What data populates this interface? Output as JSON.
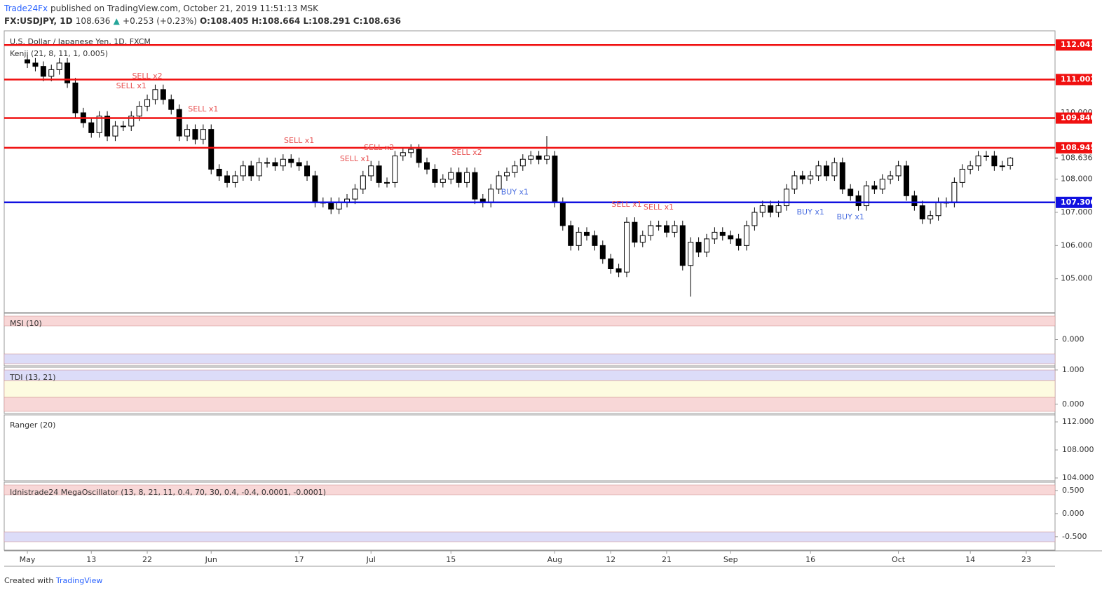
{
  "header": {
    "publisher": "Trade24Fx",
    "published": "published on TradingView.com, October 21, 2019 11:51:13 MSK",
    "symbol": "FX:USDJPY, 1D",
    "price": "108.636",
    "arrow": "▲",
    "change": "+0.253 (+0.23%)",
    "ohlc": "O:108.405 H:108.664 L:108.291 C:108.636"
  },
  "chart_data": {
    "type": "candlestick",
    "title": "U.S. Dollar / Japanese Yen, 1D, FXCM",
    "indicator": "Kenji (21, 8, 11, 1, 0.005)",
    "up_color": "#ffffff",
    "down_color": "#000000",
    "open": [
      111.6,
      111.5,
      111.4,
      111.1,
      111.3,
      111.5,
      110.9,
      110.0,
      109.7,
      109.4,
      109.9,
      109.3,
      109.6,
      109.6,
      109.9,
      110.2,
      110.4,
      110.7,
      110.4,
      110.1,
      109.3,
      109.5,
      109.2,
      109.5,
      108.3,
      108.1,
      107.9,
      108.1,
      108.4,
      108.1,
      108.5,
      108.5,
      108.4,
      108.6,
      108.5,
      108.4,
      108.1,
      107.3,
      107.3,
      107.1,
      107.3,
      107.4,
      107.7,
      108.1,
      108.4,
      107.9,
      107.9,
      108.7,
      108.8,
      108.9,
      108.5,
      108.3,
      107.9,
      108.0,
      108.2,
      107.9,
      108.2,
      107.4,
      107.3,
      107.7,
      108.1,
      108.2,
      108.4,
      108.6,
      108.7,
      108.6,
      108.7,
      107.3,
      106.6,
      106.0,
      106.4,
      106.3,
      106.0,
      105.6,
      105.3,
      105.2,
      106.7,
      106.1,
      106.3,
      106.6,
      106.6,
      106.4,
      106.6,
      105.4,
      106.1,
      105.8,
      106.2,
      106.4,
      106.3,
      106.2,
      106.0,
      106.6,
      107.0,
      107.2,
      107.0,
      107.2,
      107.7,
      108.1,
      108.0,
      108.1,
      108.4,
      108.1,
      108.5,
      107.7,
      107.5,
      107.2,
      107.8,
      107.7,
      108.0,
      108.1,
      108.4,
      107.5,
      107.2,
      106.8,
      106.9,
      107.3,
      107.3,
      107.9,
      108.3,
      108.4,
      108.7,
      108.7,
      108.4,
      108.405
    ],
    "high": [
      111.75,
      111.65,
      111.55,
      111.45,
      111.65,
      111.65,
      111.05,
      110.15,
      109.85,
      110.05,
      110.05,
      109.75,
      109.75,
      110.05,
      110.35,
      110.55,
      110.85,
      110.85,
      110.55,
      110.25,
      109.65,
      109.65,
      109.65,
      109.65,
      108.45,
      108.25,
      108.25,
      108.55,
      108.55,
      108.65,
      108.65,
      108.65,
      108.75,
      108.75,
      108.65,
      108.55,
      108.25,
      107.45,
      107.45,
      107.45,
      107.55,
      107.85,
      108.25,
      108.55,
      108.55,
      108.05,
      108.85,
      108.95,
      109.05,
      109.05,
      108.65,
      108.45,
      108.15,
      108.35,
      108.35,
      108.35,
      108.35,
      107.55,
      107.85,
      108.25,
      108.35,
      108.55,
      108.75,
      108.85,
      108.85,
      109.3,
      108.85,
      107.45,
      106.75,
      106.55,
      106.55,
      106.45,
      106.15,
      105.75,
      105.45,
      106.85,
      106.85,
      106.45,
      106.75,
      106.75,
      106.75,
      106.75,
      106.75,
      106.25,
      106.25,
      106.35,
      106.55,
      106.55,
      106.45,
      106.35,
      106.75,
      107.15,
      107.35,
      107.35,
      107.35,
      107.85,
      108.25,
      108.25,
      108.25,
      108.55,
      108.55,
      108.65,
      108.65,
      107.85,
      107.65,
      107.95,
      107.95,
      108.15,
      108.25,
      108.55,
      108.55,
      107.65,
      107.35,
      107.05,
      107.45,
      107.45,
      108.05,
      108.45,
      108.55,
      108.85,
      108.85,
      108.85,
      108.55,
      108.664
    ],
    "low": [
      111.35,
      111.25,
      110.95,
      110.95,
      111.15,
      110.75,
      109.85,
      109.55,
      109.25,
      109.25,
      109.15,
      109.15,
      109.45,
      109.45,
      109.75,
      110.05,
      110.25,
      110.25,
      109.95,
      109.15,
      109.15,
      109.05,
      109.05,
      108.15,
      107.95,
      107.75,
      107.75,
      107.95,
      107.95,
      107.95,
      108.35,
      108.25,
      108.25,
      108.35,
      108.25,
      107.95,
      107.15,
      107.15,
      106.95,
      106.95,
      107.15,
      107.25,
      107.55,
      107.95,
      107.75,
      107.75,
      107.75,
      108.55,
      108.65,
      108.35,
      108.15,
      107.75,
      107.75,
      107.85,
      107.75,
      107.75,
      107.25,
      107.15,
      107.15,
      107.55,
      107.95,
      108.05,
      108.25,
      108.45,
      108.45,
      108.45,
      107.15,
      106.45,
      105.85,
      105.85,
      106.15,
      105.85,
      105.45,
      105.15,
      105.05,
      105.05,
      105.95,
      105.95,
      106.15,
      106.45,
      106.25,
      106.25,
      105.25,
      104.46,
      105.65,
      105.65,
      106.05,
      106.15,
      106.05,
      105.85,
      105.85,
      106.45,
      106.85,
      106.85,
      106.85,
      107.05,
      107.55,
      107.85,
      107.85,
      107.95,
      107.95,
      107.95,
      107.55,
      107.35,
      107.05,
      107.05,
      107.55,
      107.55,
      107.85,
      107.95,
      107.35,
      107.05,
      106.65,
      106.65,
      106.75,
      107.15,
      107.15,
      107.75,
      108.15,
      108.25,
      108.55,
      108.25,
      108.25,
      108.291
    ],
    "close": [
      111.5,
      111.4,
      111.1,
      111.3,
      111.5,
      110.9,
      110.0,
      109.7,
      109.4,
      109.9,
      109.3,
      109.6,
      109.6,
      109.9,
      110.2,
      110.4,
      110.7,
      110.4,
      110.1,
      109.3,
      109.5,
      109.2,
      109.5,
      108.3,
      108.1,
      107.9,
      108.1,
      108.4,
      108.1,
      108.5,
      108.5,
      108.4,
      108.6,
      108.5,
      108.4,
      108.1,
      107.3,
      107.3,
      107.1,
      107.3,
      107.4,
      107.7,
      108.1,
      108.4,
      107.9,
      107.9,
      108.7,
      108.8,
      108.9,
      108.5,
      108.3,
      107.9,
      108.0,
      108.2,
      107.9,
      108.2,
      107.4,
      107.3,
      107.7,
      108.1,
      108.2,
      108.4,
      108.6,
      108.7,
      108.6,
      108.7,
      107.3,
      106.6,
      106.0,
      106.4,
      106.3,
      106.0,
      105.6,
      105.3,
      105.2,
      106.7,
      106.1,
      106.3,
      106.6,
      106.6,
      106.4,
      106.6,
      105.4,
      106.1,
      105.8,
      106.2,
      106.4,
      106.3,
      106.2,
      106.0,
      106.6,
      107.0,
      107.2,
      107.0,
      107.2,
      107.7,
      108.1,
      108.0,
      108.1,
      108.4,
      108.1,
      108.5,
      107.7,
      107.5,
      107.2,
      107.8,
      107.7,
      108.0,
      108.1,
      108.4,
      107.5,
      107.2,
      106.8,
      106.9,
      107.3,
      107.3,
      107.9,
      108.3,
      108.4,
      108.7,
      108.7,
      108.4,
      108.4,
      108.636
    ],
    "xlim": [
      -2.9,
      128.6
    ],
    "xticks": [
      {
        "value": 0,
        "label": "May"
      },
      {
        "value": 8,
        "label": "13"
      },
      {
        "value": 15,
        "label": "22"
      },
      {
        "value": 23,
        "label": "Jun"
      },
      {
        "value": 34,
        "label": "17"
      },
      {
        "value": 43,
        "label": "Jul"
      },
      {
        "value": 53,
        "label": "15"
      },
      {
        "value": 66,
        "label": "Aug"
      },
      {
        "value": 73,
        "label": "12"
      },
      {
        "value": 80,
        "label": "21"
      },
      {
        "value": 88,
        "label": "Sep"
      },
      {
        "value": 98,
        "label": "16"
      },
      {
        "value": 109,
        "label": "Oct"
      },
      {
        "value": 118,
        "label": "14"
      },
      {
        "value": 125,
        "label": "23"
      }
    ],
    "ylim": [
      103.98,
      112.47
    ],
    "yticks": [
      {
        "value": 105,
        "label": "105.000"
      },
      {
        "value": 106,
        "label": "106.000"
      },
      {
        "value": 107,
        "label": "107.000"
      },
      {
        "value": 108,
        "label": "108.000"
      },
      {
        "value": 110,
        "label": "110.000"
      }
    ],
    "last_price": {
      "value": 108.636,
      "label": "108.636"
    },
    "hlines": [
      {
        "value": 112.043,
        "label": "112.043",
        "color": "#f01010"
      },
      {
        "value": 111.002,
        "label": "111.002",
        "color": "#f01010"
      },
      {
        "value": 109.84,
        "label": "109.840",
        "color": "#f01010"
      },
      {
        "value": 108.945,
        "label": "108.945",
        "color": "#f01010"
      },
      {
        "value": 107.3,
        "label": "107.300",
        "color": "#1010e0"
      }
    ],
    "annotations": [
      {
        "text": "SELL x1",
        "index": 13,
        "price": 110.8,
        "color": "#e85050"
      },
      {
        "text": "SELL x2",
        "index": 15,
        "price": 111.1,
        "color": "#e85050"
      },
      {
        "text": "SELL x1",
        "index": 22,
        "price": 110.1,
        "color": "#e85050"
      },
      {
        "text": "SELL x1",
        "index": 34,
        "price": 109.15,
        "color": "#e85050"
      },
      {
        "text": "SELL x1",
        "index": 41,
        "price": 108.6,
        "color": "#e85050"
      },
      {
        "text": "SELL x2",
        "index": 44,
        "price": 108.94,
        "color": "#e85050"
      },
      {
        "text": "SELL x2",
        "index": 55,
        "price": 108.8,
        "color": "#e85050"
      },
      {
        "text": "BUY x1",
        "index": 61,
        "price": 107.6,
        "color": "#4a6ee0"
      },
      {
        "text": "SELL x1",
        "index": 75,
        "price": 107.23,
        "color": "#e85050"
      },
      {
        "text": "SELL x1",
        "index": 79,
        "price": 107.15,
        "color": "#e85050"
      },
      {
        "text": "BUY x1",
        "index": 98,
        "price": 107.0,
        "color": "#4a6ee0"
      },
      {
        "text": "BUY x1",
        "index": 103,
        "price": 106.85,
        "color": "#4a6ee0"
      }
    ]
  },
  "panes": [
    {
      "title": "MSI (10)",
      "ylim": [
        -1,
        1
      ],
      "yticks": [
        {
          "value": 0,
          "label": "0.000"
        }
      ]
    },
    {
      "title": "TDI (13, 21)",
      "ylim": [
        -0.27,
        1.08
      ],
      "yticks": [
        {
          "value": 1,
          "label": "1.000"
        },
        {
          "value": 0,
          "label": "0.000"
        }
      ]
    },
    {
      "title": "Ranger (20)",
      "ylim": [
        103.6,
        113
      ],
      "yticks": [
        {
          "value": 112,
          "label": "112.000"
        },
        {
          "value": 108,
          "label": "108.000"
        },
        {
          "value": 104,
          "label": "104.000"
        }
      ]
    },
    {
      "title": "Idnistrade24 MegaOscillator (13, 8, 21, 11, 0.4, 70, 30, 0.4, -0.4, 0.0001, -0.0001)",
      "ylim": [
        -0.79,
        0.68
      ],
      "yticks": [
        {
          "value": 0.5,
          "label": "0.500"
        },
        {
          "value": 0,
          "label": "0.000"
        },
        {
          "value": -0.5,
          "label": "-0.500"
        }
      ]
    }
  ],
  "footer": {
    "created": "Created with",
    "brand": "TradingView"
  }
}
